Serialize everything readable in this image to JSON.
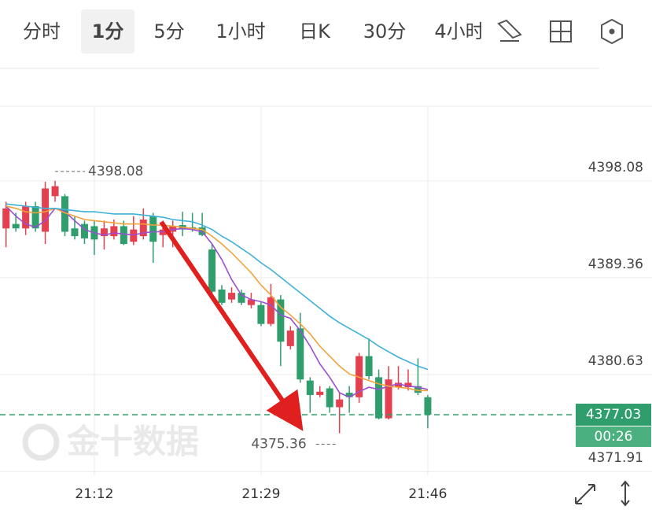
{
  "tabs": [
    "分时",
    "1分",
    "5分",
    "1小时",
    "日K",
    "30分",
    "4小时"
  ],
  "chart_data": {
    "type": "candlestick",
    "watermark": "金十数据",
    "categories": [
      null,
      null,
      null,
      null,
      null,
      null,
      null,
      null,
      null,
      "21:12",
      null,
      null,
      null,
      null,
      null,
      null,
      null,
      null,
      null,
      null,
      null,
      null,
      null,
      null,
      null,
      null,
      "21:29",
      null,
      null,
      null,
      null,
      null,
      null,
      null,
      null,
      null,
      null,
      null,
      null,
      null,
      null,
      null,
      null,
      "21:46"
    ],
    "open": [
      4393.8,
      4394.2,
      4393.8,
      4395.8,
      4393.5,
      4396.7,
      4396.7,
      4393.8,
      4394.2,
      4394.0,
      4393.1,
      4393.1,
      4394.0,
      4392.6,
      4393.1,
      4394.9,
      4393.2,
      4393.5,
      4394.1,
      4393.9,
      4393.9,
      4391.9,
      4388.3,
      4387.4,
      4388.0,
      4386.9,
      4386.9,
      4385.2,
      4387.4,
      4383.2,
      4384.8,
      4380.1,
      4378.8,
      4379.4,
      4377.7,
      4379.0,
      4378.6,
      4382.3,
      4380.4,
      4376.7,
      4379.5,
      4379.5,
      4379.6,
      4378.6
    ],
    "high": [
      4396.2,
      4395.2,
      4396.2,
      4396.2,
      4398.0,
      4398.08,
      4396.9,
      4394.9,
      4394.5,
      4394.5,
      4394.5,
      4394.6,
      4394.5,
      4394.9,
      4395.6,
      4395.2,
      4394.5,
      4394.5,
      4395.3,
      4395.2,
      4395.2,
      4392.4,
      4388.7,
      4388.5,
      4388.3,
      4388.0,
      4387.2,
      4388.8,
      4387.8,
      4385.0,
      4386.2,
      4380.4,
      4379.6,
      4379.6,
      4379.0,
      4379.6,
      4382.6,
      4383.9,
      4381.1,
      4381.4,
      4381.4,
      4381.1,
      4382.1,
      4378.8
    ],
    "low": [
      4392.1,
      4393.5,
      4393.2,
      4393.5,
      4392.4,
      4396.2,
      4393.1,
      4392.8,
      4392.4,
      4391.4,
      4391.9,
      4392.8,
      4392.3,
      4392.3,
      4392.8,
      4390.7,
      4392.1,
      4392.1,
      4393.1,
      4393.5,
      4393.1,
      4387.8,
      4386.9,
      4387.1,
      4386.9,
      4386.6,
      4385.0,
      4385.0,
      4381.4,
      4382.9,
      4379.9,
      4377.2,
      4378.6,
      4377.2,
      4375.36,
      4377.2,
      4378.1,
      4380.2,
      4376.6,
      4376.6,
      4379.3,
      4379.2,
      4378.8,
      4375.8
    ],
    "close": [
      4395.6,
      4393.8,
      4395.8,
      4393.8,
      4397.4,
      4397.6,
      4393.5,
      4393.1,
      4392.9,
      4392.8,
      4393.8,
      4394.0,
      4392.4,
      4393.7,
      4394.6,
      4392.6,
      4393.7,
      4394.0,
      4393.7,
      4393.7,
      4393.2,
      4388.1,
      4387.1,
      4388.0,
      4387.1,
      4387.4,
      4385.2,
      4387.6,
      4383.6,
      4384.6,
      4380.2,
      4378.8,
      4379.1,
      4377.7,
      4378.4,
      4378.6,
      4382.3,
      4380.5,
      4376.7,
      4380.2,
      4379.9,
      4379.9,
      4379.0,
      4377.03
    ],
    "up_color": "#e5404f",
    "down_color": "#2f9e6c",
    "moving_averages": [
      {
        "color": "#9a4fd2",
        "values": [
          4395.8,
          4394.9,
          4394.2,
          4393.9,
          4394.5,
          4395.6,
          4395.3,
          4394.5,
          4393.7,
          4393.4,
          4393.2,
          4393.4,
          4393.3,
          4393.2,
          4393.4,
          4393.5,
          4393.5,
          4393.7,
          4393.8,
          4393.7,
          4393.5,
          4392.4,
          4391.0,
          4389.2,
          4387.8,
          4387.4,
          4387.2,
          4386.9,
          4386.0,
          4385.7,
          4384.6,
          4383.2,
          4381.6,
          4380.4,
          4379.0,
          4378.6,
          4379.1,
          4379.5,
          4379.3,
          4379.6,
          4379.8,
          4379.6,
          4379.5,
          4379.3
        ]
      },
      {
        "color": "#f3a13a",
        "values": [
          4395.8,
          4395.6,
          4395.3,
          4395.2,
          4395.3,
          4395.6,
          4395.2,
          4394.9,
          4394.6,
          4394.5,
          4394.4,
          4394.3,
          4394.2,
          4394.2,
          4394.2,
          4394.1,
          4394.1,
          4394.0,
          4393.9,
          4393.8,
          4393.7,
          4393.1,
          4392.4,
          4391.6,
          4390.7,
          4389.8,
          4388.7,
          4387.8,
          4386.7,
          4386.0,
          4385.2,
          4384.3,
          4383.2,
          4382.3,
          4381.4,
          4380.7,
          4380.4,
          4380.1,
          4379.8,
          4379.6,
          4379.5,
          4379.4,
          4379.2,
          4379.2
        ]
      },
      {
        "color": "#3fb1d9",
        "values": [
          4396.0,
          4395.9,
          4395.8,
          4395.7,
          4395.6,
          4395.6,
          4395.5,
          4395.4,
          4395.3,
          4395.3,
          4395.2,
          4395.1,
          4395.1,
          4395.1,
          4395.0,
          4394.9,
          4394.8,
          4394.6,
          4394.5,
          4394.4,
          4394.1,
          4393.7,
          4393.1,
          4392.6,
          4392.0,
          4391.4,
          4390.7,
          4390.1,
          4389.4,
          4388.7,
          4388.0,
          4387.3,
          4386.6,
          4385.9,
          4385.3,
          4384.8,
          4384.3,
          4383.8,
          4383.2,
          4382.7,
          4382.2,
          4381.8,
          4381.4,
          4381.1
        ]
      }
    ],
    "ylim": [
      4371.5,
      4404.8
    ],
    "yticks": [
      4398.08,
      4389.36,
      4380.63,
      4371.91
    ],
    "grid": true,
    "max_marker": 4398.08,
    "min_marker": 4375.36,
    "last_price": 4377.03,
    "countdown": "00:26"
  }
}
